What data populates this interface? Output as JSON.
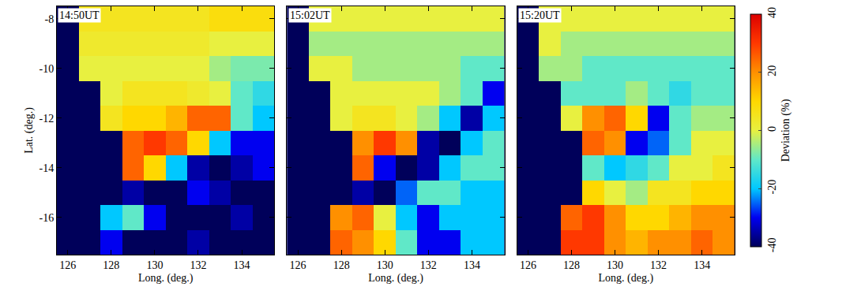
{
  "chart_data": [
    {
      "type": "heatmap",
      "title": "14:50UT",
      "xlabel": "Long. (deg.)",
      "ylabel": "Lat. (deg.)",
      "x": [
        126,
        127,
        128,
        129,
        130,
        131,
        132,
        133,
        134,
        135
      ],
      "y": [
        -8,
        -9,
        -10,
        -11,
        -12,
        -13,
        -14,
        -15,
        -16,
        -17
      ],
      "xlim": [
        125.5,
        135.5
      ],
      "ylim": [
        -17.5,
        -7.5
      ],
      "xticks": [
        126,
        128,
        130,
        132,
        134
      ],
      "yticks": [
        -16,
        -14,
        -12,
        -10,
        -8
      ],
      "cells": [
        [
          null,
          5,
          5,
          5,
          5,
          5,
          5,
          8,
          8,
          8
        ],
        [
          null,
          3,
          3,
          3,
          3,
          3,
          3,
          0,
          0,
          0
        ],
        [
          null,
          0,
          0,
          0,
          0,
          0,
          0,
          -5,
          -8,
          -8
        ],
        [
          null,
          null,
          0,
          5,
          5,
          5,
          3,
          0,
          -10,
          -15
        ],
        [
          null,
          null,
          5,
          10,
          10,
          15,
          25,
          25,
          -10,
          -20
        ],
        [
          null,
          null,
          null,
          25,
          30,
          25,
          10,
          -20,
          -30,
          -30
        ],
        [
          null,
          null,
          null,
          25,
          10,
          -20,
          -35,
          -40,
          -35,
          -30
        ],
        [
          null,
          null,
          null,
          -35,
          -40,
          -40,
          -30,
          -35,
          -40,
          -40
        ],
        [
          null,
          null,
          -20,
          -10,
          -30,
          -40,
          -40,
          -40,
          -35,
          -40
        ],
        [
          null,
          null,
          -30,
          -40,
          -40,
          -40,
          -35,
          -40,
          -40,
          -40
        ]
      ]
    },
    {
      "type": "heatmap",
      "title": "15:02UT",
      "xlabel": "Long. (deg.)",
      "tick_labels": "x",
      "x": [
        126,
        127,
        128,
        129,
        130,
        131,
        132,
        133,
        134,
        135
      ],
      "y": [
        -8,
        -9,
        -10,
        -11,
        -12,
        -13,
        -14,
        -15,
        -16,
        -17
      ],
      "xlim": [
        125.5,
        135.5
      ],
      "ylim": [
        -17.5,
        -7.5
      ],
      "xticks": [
        126,
        128,
        130,
        132,
        134
      ],
      "yticks": [
        -16,
        -14,
        -12,
        -10,
        -8
      ],
      "cells": [
        [
          null,
          0,
          0,
          0,
          0,
          0,
          0,
          0,
          0,
          0
        ],
        [
          null,
          -5,
          -5,
          -5,
          -5,
          -5,
          -5,
          -5,
          -5,
          -5
        ],
        [
          null,
          0,
          0,
          -5,
          -5,
          -5,
          -5,
          -5,
          -10,
          -10
        ],
        [
          null,
          null,
          0,
          0,
          0,
          0,
          0,
          -5,
          -10,
          -30
        ],
        [
          null,
          null,
          0,
          5,
          5,
          0,
          -5,
          -20,
          -35,
          -20
        ],
        [
          null,
          null,
          null,
          20,
          30,
          20,
          -35,
          -40,
          -20,
          -10
        ],
        [
          null,
          null,
          null,
          25,
          -30,
          -40,
          -35,
          -20,
          -10,
          -10
        ],
        [
          null,
          null,
          null,
          -35,
          -40,
          -25,
          -10,
          -10,
          -20,
          -20
        ],
        [
          null,
          null,
          20,
          25,
          0,
          -20,
          -30,
          -20,
          -20,
          -20
        ],
        [
          null,
          null,
          25,
          20,
          10,
          -10,
          -30,
          -30,
          -20,
          -20
        ]
      ]
    },
    {
      "type": "heatmap",
      "title": "15:20UT",
      "xlabel": "Long. (deg.)",
      "tick_labels": "x",
      "x": [
        126,
        127,
        128,
        129,
        130,
        131,
        132,
        133,
        134,
        135
      ],
      "y": [
        -8,
        -9,
        -10,
        -11,
        -12,
        -13,
        -14,
        -15,
        -16,
        -17
      ],
      "xlim": [
        125.5,
        135.5
      ],
      "ylim": [
        -17.5,
        -7.5
      ],
      "xticks": [
        126,
        128,
        130,
        132,
        134
      ],
      "yticks": [
        -16,
        -14,
        -12,
        -10,
        -8
      ],
      "cells": [
        [
          null,
          0,
          0,
          0,
          0,
          0,
          0,
          0,
          0,
          0
        ],
        [
          null,
          0,
          -5,
          -5,
          -5,
          -5,
          -5,
          -5,
          -5,
          -5
        ],
        [
          null,
          -5,
          -5,
          -10,
          -10,
          -10,
          -10,
          -10,
          -10,
          -10
        ],
        [
          null,
          null,
          -10,
          -10,
          -10,
          -5,
          -10,
          -15,
          -10,
          -10
        ],
        [
          null,
          null,
          0,
          20,
          25,
          10,
          -30,
          -10,
          -5,
          -5
        ],
        [
          null,
          null,
          null,
          25,
          20,
          -30,
          -25,
          -10,
          0,
          0
        ],
        [
          null,
          null,
          null,
          -10,
          -20,
          -15,
          -10,
          0,
          0,
          5
        ],
        [
          null,
          null,
          null,
          10,
          0,
          -5,
          5,
          5,
          10,
          10
        ],
        [
          null,
          null,
          25,
          30,
          20,
          10,
          10,
          15,
          20,
          20
        ],
        [
          null,
          null,
          30,
          30,
          20,
          15,
          20,
          20,
          25,
          20
        ]
      ],
      "colorbar": {
        "title": "Deviation (%)",
        "range": [
          -40,
          40
        ],
        "ticks": [
          -40,
          -20,
          0,
          20,
          40
        ]
      }
    }
  ]
}
